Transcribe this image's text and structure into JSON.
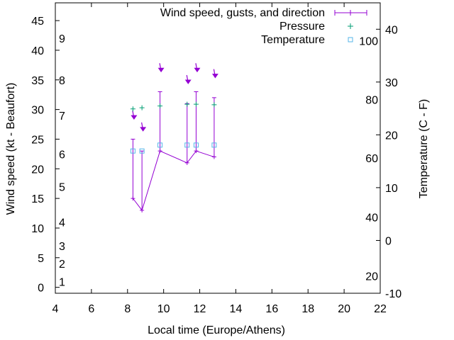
{
  "chart_data": {
    "type": "line",
    "xlabel": "Local time (Europe/Athens)",
    "ylabel": "Wind speed (kt - Beaufort)",
    "y2label": "Temperature (C - F)",
    "xlim": [
      4,
      22
    ],
    "ylim": [
      -1,
      48
    ],
    "y2lim": [
      -10,
      45
    ],
    "x_ticks": [
      "4",
      "6",
      "8",
      "10",
      "12",
      "14",
      "16",
      "18",
      "20",
      "22"
    ],
    "y_ticks": [
      "0",
      "5",
      "10",
      "15",
      "20",
      "25",
      "30",
      "35",
      "40",
      "45"
    ],
    "y2_ticks": [
      "-10",
      "0",
      "10",
      "20",
      "30",
      "40"
    ],
    "beaufort_labels": [
      {
        "text": "1",
        "y": 1
      },
      {
        "text": "2",
        "y": 4
      },
      {
        "text": "3",
        "y": 7
      },
      {
        "text": "4",
        "y": 11
      },
      {
        "text": "5",
        "y": 17
      },
      {
        "text": "6",
        "y": 22.5
      },
      {
        "text": "7",
        "y": 29
      },
      {
        "text": "8",
        "y": 35
      },
      {
        "text": "9",
        "y": 42
      }
    ],
    "fahrenheit_labels": [
      {
        "text": "20",
        "y2": -6.7
      },
      {
        "text": "40",
        "y2": 4.4
      },
      {
        "text": "60",
        "y2": 15.6
      },
      {
        "text": "80",
        "y2": 26.7
      },
      {
        "text": "100",
        "y2": 37.8
      }
    ],
    "legend": [
      "Wind speed, gusts, and direction",
      "Pressure",
      "Temperature"
    ],
    "legend_position": "top-right",
    "grid": false,
    "colors": {
      "wind": "#9400d3",
      "pressure": "#009e73",
      "temperature": "#56b4e9"
    },
    "series": [
      {
        "name": "Wind speed, gusts, and direction",
        "x": [
          8.3,
          8.8,
          9.8,
          11.3,
          11.8,
          12.8
        ],
        "speed": [
          15,
          13,
          23,
          21,
          23,
          22
        ],
        "gust": [
          25,
          23,
          33,
          31,
          33,
          32
        ],
        "arrow_y": [
          28.5,
          26.5,
          36.5,
          34.5,
          36.5,
          35.5
        ]
      },
      {
        "name": "Pressure",
        "x": [
          8.3,
          8.8,
          9.8,
          11.3,
          11.8,
          12.8
        ],
        "y": [
          30.1,
          30.3,
          30.6,
          30.9,
          30.9,
          30.8
        ]
      },
      {
        "name": "Temperature",
        "x": [
          8.3,
          8.8,
          9.8,
          11.3,
          11.8,
          12.8
        ],
        "y": [
          23,
          23,
          24,
          24,
          24,
          24
        ]
      }
    ]
  }
}
